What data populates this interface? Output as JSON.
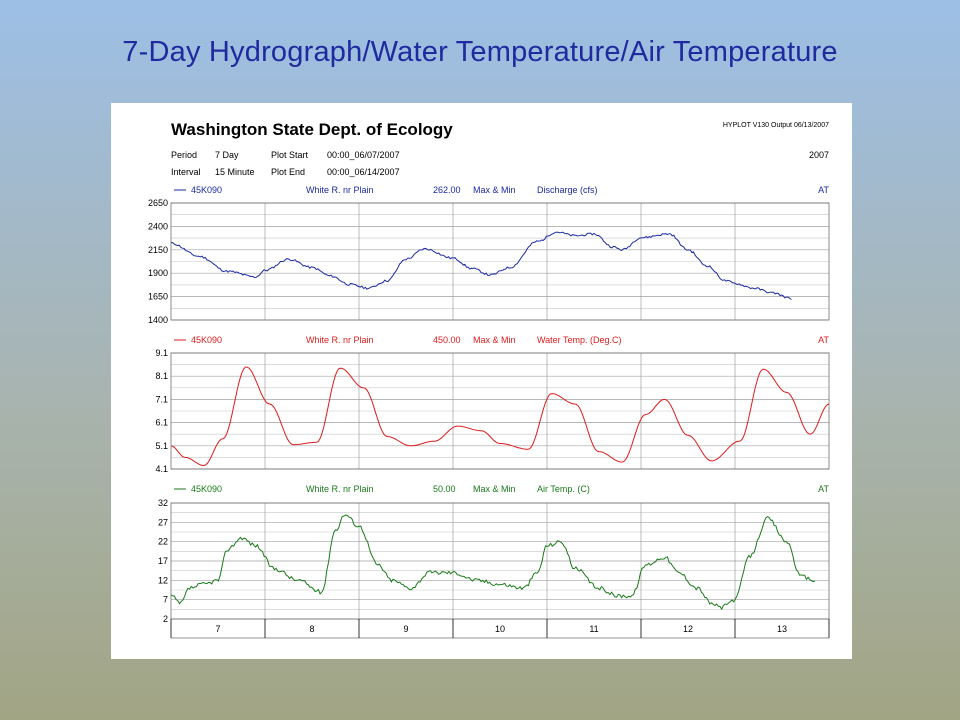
{
  "slide": {
    "title": "7-Day Hydrograph/Water Temperature/Air Temperature"
  },
  "report": {
    "agency": "Washington State Dept. of Ecology",
    "version": "HYPLOT V130  Output 06/13/2007",
    "year": "2007",
    "period_label": "Period",
    "period_value": "7 Day",
    "interval_label": "Interval",
    "interval_value": "15 Minute",
    "plot_start_label": "Plot Start",
    "plot_start_value": "00:00_06/07/2007",
    "plot_end_label": "Plot End",
    "plot_end_value": "00:00_06/14/2007"
  },
  "colors": {
    "discharge": "#1a2aa0",
    "water_temp": "#dd1c1c",
    "air_temp": "#1a7a1a",
    "grid": "#a0a0a0"
  },
  "chart_data": [
    {
      "type": "line",
      "site": "45K090",
      "station": "White R. nr Plain",
      "code": "262.00",
      "stat": "Max & Min",
      "parameter": "Discharge (cfs)",
      "flag": "AT",
      "yticks": [
        1400,
        1650,
        1900,
        2150,
        2400,
        2650
      ],
      "ylim": [
        1400,
        2650
      ],
      "xlim": [
        0,
        7
      ],
      "x": [
        0,
        0.3,
        0.6,
        0.9,
        1.0,
        1.25,
        1.5,
        1.7,
        1.9,
        2.1,
        2.3,
        2.5,
        2.7,
        3.0,
        3.2,
        3.4,
        3.6,
        3.9,
        4.1,
        4.3,
        4.5,
        4.7,
        4.8,
        5.0,
        5.3,
        5.5,
        5.7,
        5.9,
        6.0,
        6.2,
        6.4,
        6.6
      ],
      "values": [
        2220,
        2080,
        1920,
        1860,
        1930,
        2050,
        1960,
        1870,
        1780,
        1740,
        1820,
        2050,
        2160,
        2060,
        1950,
        1880,
        1960,
        2240,
        2340,
        2300,
        2320,
        2180,
        2150,
        2280,
        2320,
        2150,
        1980,
        1820,
        1790,
        1740,
        1690,
        1630
      ]
    },
    {
      "type": "line",
      "site": "45K090",
      "station": "White R. nr Plain",
      "code": "450.00",
      "stat": "Max & Min",
      "parameter": "Water Temp. (Deg.C)",
      "flag": "AT",
      "yticks": [
        4.1,
        5.1,
        6.1,
        7.1,
        8.1,
        9.1
      ],
      "ylim": [
        4.1,
        9.1
      ],
      "xlim": [
        0,
        7
      ],
      "x": [
        0,
        0.15,
        0.35,
        0.55,
        0.8,
        1.05,
        1.3,
        1.55,
        1.8,
        2.05,
        2.3,
        2.55,
        2.8,
        3.05,
        3.3,
        3.5,
        3.8,
        4.05,
        4.3,
        4.55,
        4.8,
        5.05,
        5.25,
        5.5,
        5.75,
        6.05,
        6.3,
        6.55,
        6.8,
        7.0
      ],
      "values": [
        5.1,
        4.6,
        4.25,
        5.4,
        8.5,
        6.9,
        5.15,
        5.25,
        8.45,
        7.6,
        5.5,
        5.1,
        5.3,
        5.95,
        5.75,
        5.2,
        4.95,
        7.35,
        6.9,
        4.85,
        4.4,
        6.45,
        7.1,
        5.55,
        4.45,
        5.3,
        8.4,
        7.4,
        5.6,
        6.9
      ]
    },
    {
      "type": "line",
      "site": "45K090",
      "station": "White R. nr Plain",
      "code": "50.00",
      "stat": "Max & Min",
      "parameter": "Air Temp. (C)",
      "flag": "AT",
      "yticks": [
        2,
        7,
        12,
        17,
        22,
        27,
        32
      ],
      "ylim": [
        2,
        32
      ],
      "xlim": [
        0,
        7
      ],
      "x": [
        0,
        0.1,
        0.2,
        0.35,
        0.5,
        0.6,
        0.75,
        0.9,
        1.1,
        1.35,
        1.6,
        1.75,
        1.85,
        2.0,
        2.2,
        2.35,
        2.55,
        2.75,
        3.0,
        3.25,
        3.5,
        3.75,
        3.9,
        4.0,
        4.15,
        4.3,
        4.55,
        4.75,
        4.9,
        5.05,
        5.25,
        5.4,
        5.6,
        5.75,
        5.85,
        6.0,
        6.15,
        6.35,
        6.55,
        6.7,
        6.85
      ],
      "values": [
        8,
        6,
        10,
        11,
        12,
        20,
        23,
        21,
        15,
        12,
        9,
        25,
        29,
        26,
        16,
        12,
        10,
        14,
        14,
        12,
        11,
        10,
        14,
        21,
        22,
        15,
        10,
        8,
        8,
        16,
        18,
        14,
        10,
        6,
        5,
        7,
        18,
        28,
        22,
        13,
        12
      ]
    }
  ],
  "x_axis": {
    "labels": [
      "7",
      "8",
      "9",
      "10",
      "11",
      "12",
      "13"
    ]
  }
}
